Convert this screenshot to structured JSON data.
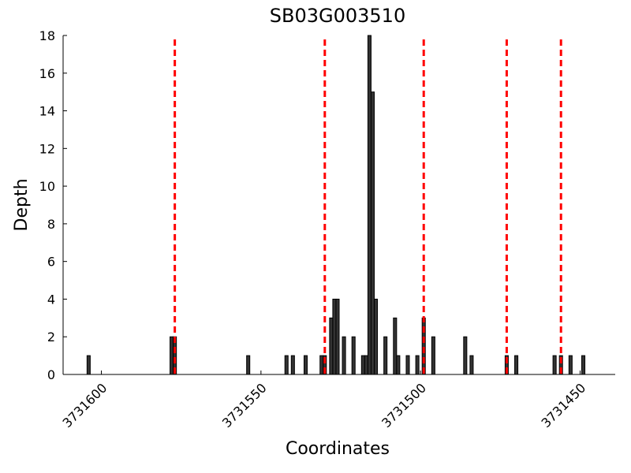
{
  "chart_data": {
    "type": "bar",
    "title": "SB03G003510",
    "x_label": "Coordinates",
    "y_label": "Depth",
    "x": [
      3731604,
      3731578,
      3731577,
      3731554,
      3731542,
      3731540,
      3731536,
      3731531,
      3731530,
      3731528,
      3731527,
      3731526,
      3731524,
      3731521,
      3731518,
      3731517,
      3731516,
      3731515,
      3731514,
      3731511,
      3731508,
      3731507,
      3731504,
      3731501,
      3731499,
      3731496,
      3731486,
      3731484,
      3731473,
      3731470,
      3731458,
      3731456,
      3731453,
      3731449
    ],
    "values": [
      1,
      2,
      2,
      1,
      1,
      1,
      1,
      1,
      1,
      3,
      4,
      4,
      2,
      2,
      1,
      1,
      18,
      15,
      4,
      2,
      3,
      1,
      1,
      1,
      3,
      2,
      2,
      1,
      1,
      1,
      1,
      1,
      1,
      1
    ],
    "color": "#333333",
    "markers": [
      3731577,
      3731530,
      3731499,
      3731473,
      3731456
    ],
    "marker_color": "#ff0000",
    "xlim": [
      3731612,
      3731439
    ],
    "xticks": [
      3731600,
      3731550,
      3731500,
      3731450
    ],
    "ylim": [
      0,
      18
    ],
    "yticks": [
      0,
      2,
      4,
      6,
      8,
      10,
      12,
      14,
      16,
      18
    ]
  }
}
